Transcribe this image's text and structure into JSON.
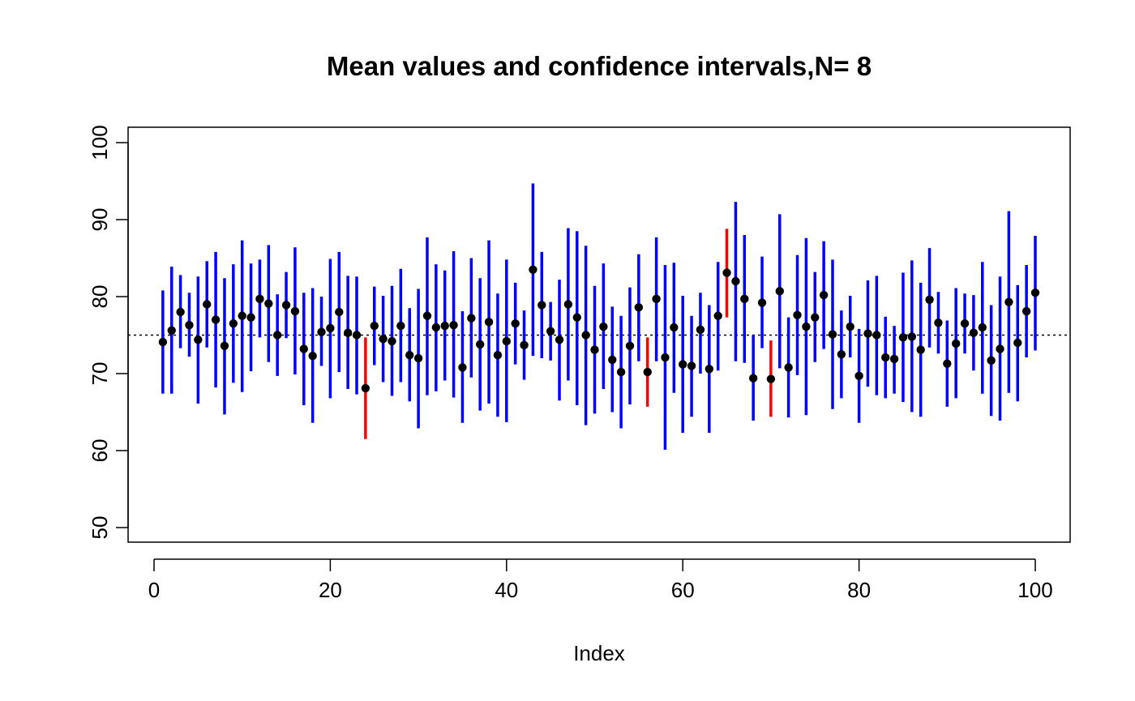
{
  "chart_data": {
    "type": "scatter",
    "title": "Mean values and confidence intervals,N= 8",
    "xlabel": "Index",
    "ylabel": "",
    "xlim": [
      0,
      100
    ],
    "ylim": [
      50,
      100
    ],
    "x_ticks": [
      0,
      20,
      40,
      60,
      80,
      100
    ],
    "y_ticks": [
      50,
      60,
      70,
      80,
      90,
      100
    ],
    "reference_line": {
      "y": 75,
      "style": "dotted",
      "color": "#000000"
    },
    "grid": false,
    "colors": {
      "covers_reference": "#0000ff",
      "misses_reference": "#ff0000",
      "point": "#000000"
    },
    "series": [
      {
        "x": [
          1,
          2,
          3,
          4,
          5,
          6,
          7,
          8,
          9,
          10,
          11,
          12,
          13,
          14,
          15,
          16,
          17,
          18,
          19,
          20,
          21,
          22,
          23,
          24,
          25,
          26,
          27,
          28,
          29,
          30,
          31,
          32,
          33,
          34,
          35,
          36,
          37,
          38,
          39,
          40,
          41,
          42,
          43,
          44,
          45,
          46,
          47,
          48,
          49,
          50,
          51,
          52,
          53,
          54,
          55,
          56,
          57,
          58,
          59,
          60,
          61,
          62,
          63,
          64,
          65,
          66,
          67,
          68,
          69,
          70,
          71,
          72,
          73,
          74,
          75,
          76,
          77,
          78,
          79,
          80,
          81,
          82,
          83,
          84,
          85,
          86,
          87,
          88,
          89,
          90,
          91,
          92,
          93,
          94,
          95,
          96,
          97,
          98,
          99,
          100
        ],
        "mean": [
          74.1,
          75.6,
          78.0,
          76.3,
          74.4,
          79.0,
          77.0,
          73.6,
          76.5,
          77.5,
          77.3,
          79.7,
          79.1,
          75.0,
          78.9,
          78.1,
          73.2,
          72.3,
          75.4,
          75.9,
          78.0,
          75.3,
          75.0,
          68.1,
          76.2,
          74.5,
          74.2,
          76.2,
          72.4,
          72.0,
          77.5,
          76.0,
          76.2,
          76.3,
          70.8,
          77.2,
          73.8,
          76.7,
          72.4,
          74.2,
          76.5,
          73.7,
          83.5,
          78.9,
          75.5,
          74.4,
          79.0,
          77.3,
          75.0,
          73.1,
          76.1,
          71.8,
          70.2,
          73.6,
          78.6,
          70.2,
          79.7,
          72.1,
          76.0,
          71.2,
          71.0,
          75.7,
          70.6,
          77.5,
          83.1,
          82.0,
          79.7,
          69.4,
          79.2,
          69.3,
          80.7,
          70.8,
          77.6,
          76.1,
          77.3,
          80.2,
          75.1,
          72.5,
          76.1,
          69.7,
          75.2,
          75.0,
          72.1,
          71.9,
          74.7,
          74.8,
          73.1,
          79.6,
          76.6,
          71.3,
          73.9,
          76.5,
          75.3,
          76.0,
          71.7,
          73.2,
          79.3,
          74.0,
          78.1,
          80.5
        ],
        "lower": [
          67.4,
          67.4,
          73.3,
          72.2,
          66.1,
          73.4,
          68.2,
          64.7,
          68.8,
          67.6,
          70.3,
          74.7,
          71.5,
          69.7,
          74.6,
          69.9,
          65.9,
          63.6,
          71.0,
          66.8,
          70.2,
          68.0,
          67.3,
          61.5,
          71.1,
          68.9,
          67.1,
          68.9,
          66.4,
          62.9,
          67.2,
          67.7,
          69.1,
          66.9,
          63.6,
          69.5,
          65.2,
          66.1,
          64.4,
          63.7,
          71.2,
          69.2,
          72.3,
          72.0,
          71.7,
          66.5,
          69.1,
          65.9,
          63.3,
          64.8,
          68.0,
          65.0,
          62.9,
          66.0,
          71.6,
          65.7,
          71.6,
          60.1,
          67.5,
          62.3,
          64.4,
          70.0,
          62.3,
          70.4,
          77.3,
          71.6,
          71.4,
          63.9,
          73.3,
          64.4,
          70.7,
          64.3,
          69.8,
          64.6,
          71.5,
          73.2,
          65.4,
          66.8,
          72.1,
          63.6,
          68.3,
          67.2,
          66.8,
          67.4,
          66.3,
          65.0,
          64.4,
          73.4,
          72.6,
          65.7,
          66.8,
          72.6,
          70.4,
          67.4,
          64.5,
          63.9,
          67.5,
          66.4,
          72.1,
          73.0
        ],
        "upper": [
          80.8,
          83.9,
          82.8,
          80.5,
          82.6,
          84.6,
          85.8,
          82.4,
          84.2,
          87.3,
          84.3,
          84.8,
          86.7,
          80.3,
          83.2,
          86.4,
          80.5,
          81.1,
          80.0,
          84.9,
          85.8,
          82.7,
          82.6,
          74.7,
          81.3,
          80.1,
          81.4,
          83.6,
          78.5,
          81.0,
          87.7,
          84.2,
          83.4,
          85.9,
          78.1,
          85.0,
          82.4,
          87.3,
          80.4,
          84.8,
          81.8,
          78.2,
          94.7,
          85.8,
          79.3,
          82.2,
          88.9,
          88.5,
          86.6,
          81.4,
          84.3,
          78.7,
          77.5,
          81.2,
          85.5,
          74.7,
          87.7,
          84.1,
          84.4,
          80.1,
          77.5,
          80.5,
          78.9,
          84.5,
          88.8,
          92.3,
          88.0,
          75.0,
          85.2,
          74.3,
          90.7,
          77.3,
          85.4,
          87.6,
          83.2,
          87.2,
          84.8,
          78.2,
          80.1,
          75.8,
          82.1,
          82.7,
          77.4,
          76.2,
          83.1,
          84.7,
          81.8,
          86.3,
          80.6,
          76.9,
          81.1,
          80.4,
          80.2,
          84.5,
          78.9,
          82.6,
          91.1,
          81.5,
          84.1,
          87.9
        ]
      }
    ]
  }
}
